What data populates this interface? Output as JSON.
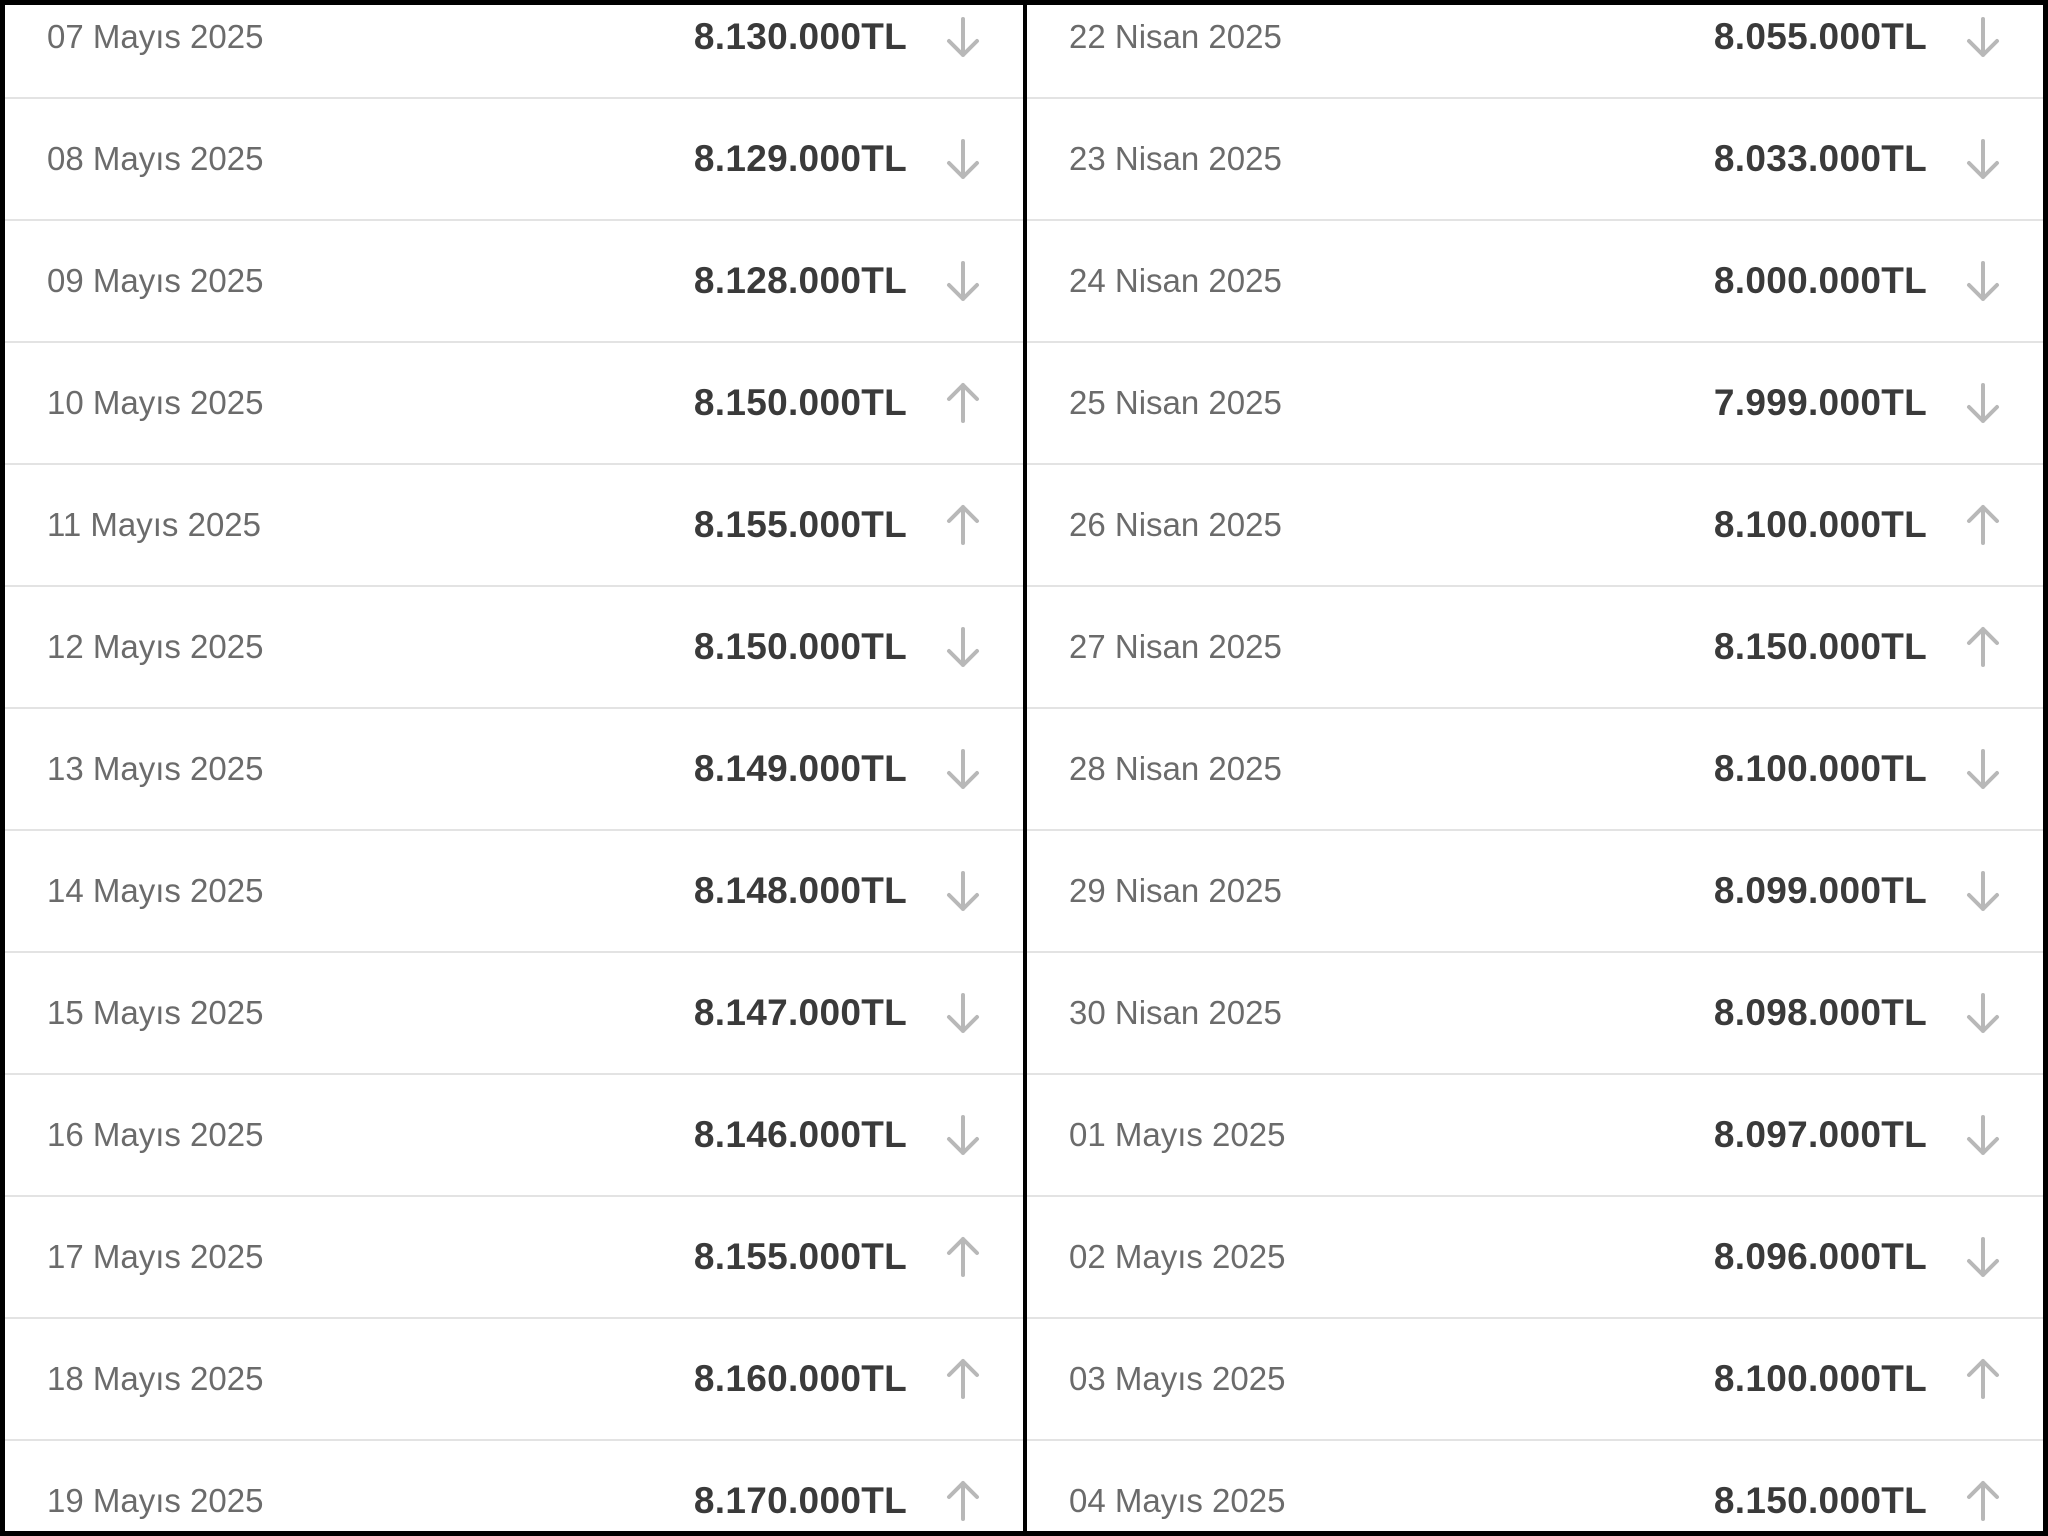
{
  "columns": [
    {
      "rows": [
        {
          "date": "07 Mayıs 2025",
          "price": "8.130.000TL",
          "direction": "down"
        },
        {
          "date": "08 Mayıs 2025",
          "price": "8.129.000TL",
          "direction": "down"
        },
        {
          "date": "09 Mayıs 2025",
          "price": "8.128.000TL",
          "direction": "down"
        },
        {
          "date": "10 Mayıs 2025",
          "price": "8.150.000TL",
          "direction": "up"
        },
        {
          "date": "11 Mayıs 2025",
          "price": "8.155.000TL",
          "direction": "up"
        },
        {
          "date": "12 Mayıs 2025",
          "price": "8.150.000TL",
          "direction": "down"
        },
        {
          "date": "13 Mayıs 2025",
          "price": "8.149.000TL",
          "direction": "down"
        },
        {
          "date": "14 Mayıs 2025",
          "price": "8.148.000TL",
          "direction": "down"
        },
        {
          "date": "15 Mayıs 2025",
          "price": "8.147.000TL",
          "direction": "down"
        },
        {
          "date": "16 Mayıs 2025",
          "price": "8.146.000TL",
          "direction": "down"
        },
        {
          "date": "17 Mayıs 2025",
          "price": "8.155.000TL",
          "direction": "up"
        },
        {
          "date": "18 Mayıs 2025",
          "price": "8.160.000TL",
          "direction": "up"
        },
        {
          "date": "19 Mayıs 2025",
          "price": "8.170.000TL",
          "direction": "up"
        }
      ]
    },
    {
      "rows": [
        {
          "date": "22 Nisan 2025",
          "price": "8.055.000TL",
          "direction": "down"
        },
        {
          "date": "23 Nisan 2025",
          "price": "8.033.000TL",
          "direction": "down"
        },
        {
          "date": "24 Nisan 2025",
          "price": "8.000.000TL",
          "direction": "down"
        },
        {
          "date": "25 Nisan 2025",
          "price": "7.999.000TL",
          "direction": "down"
        },
        {
          "date": "26 Nisan 2025",
          "price": "8.100.000TL",
          "direction": "up"
        },
        {
          "date": "27 Nisan 2025",
          "price": "8.150.000TL",
          "direction": "up"
        },
        {
          "date": "28 Nisan 2025",
          "price": "8.100.000TL",
          "direction": "down"
        },
        {
          "date": "29 Nisan 2025",
          "price": "8.099.000TL",
          "direction": "down"
        },
        {
          "date": "30 Nisan 2025",
          "price": "8.098.000TL",
          "direction": "down"
        },
        {
          "date": "01 Mayıs 2025",
          "price": "8.097.000TL",
          "direction": "down"
        },
        {
          "date": "02 Mayıs 2025",
          "price": "8.096.000TL",
          "direction": "down"
        },
        {
          "date": "03 Mayıs 2025",
          "price": "8.100.000TL",
          "direction": "up"
        },
        {
          "date": "04 Mayıs 2025",
          "price": "8.150.000TL",
          "direction": "up"
        }
      ]
    }
  ],
  "colors": {
    "date_text": "#6b6b6b",
    "price_text": "#3a3a3a",
    "arrow": "#b8b8b8",
    "divider": "#e3e3e3",
    "frame": "#000000",
    "panel": "#ffffff"
  }
}
